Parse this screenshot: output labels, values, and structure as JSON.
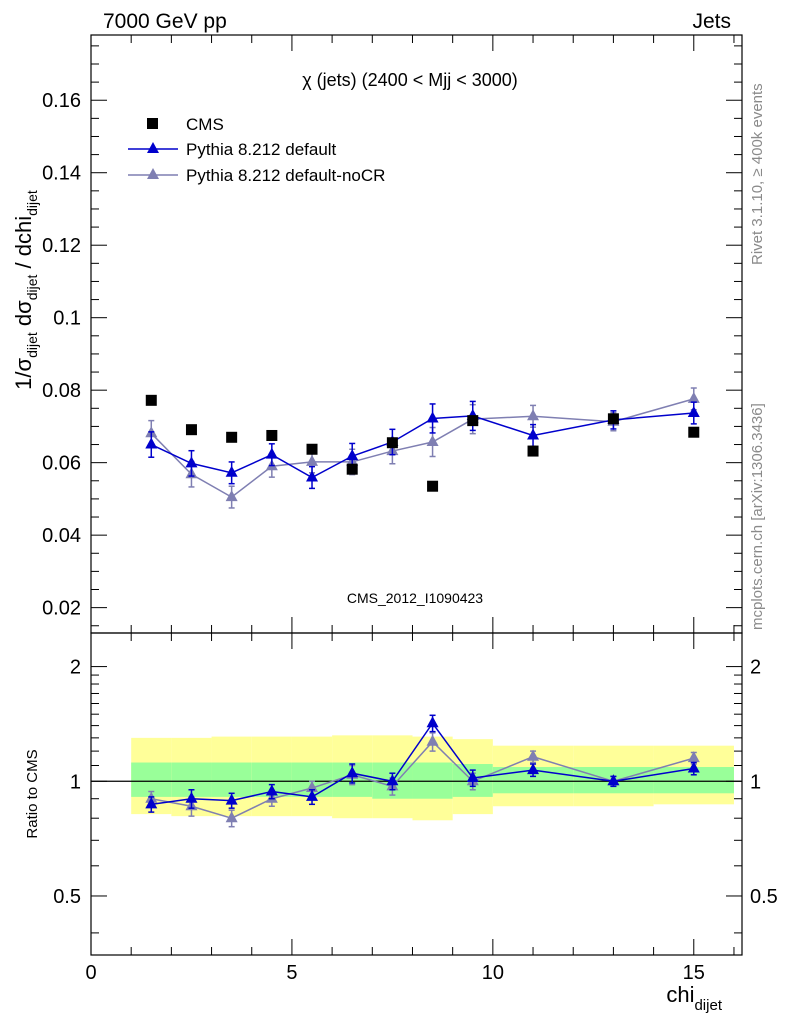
{
  "header": {
    "left": "7000 GeV pp",
    "right": "Jets"
  },
  "side_labels": {
    "rivet": "Rivet 3.1.10, ≥ 400k events",
    "mcplots": "mcplots.cern.ch [arXiv:1306.3436]"
  },
  "colors": {
    "data": "#000000",
    "default": "#0000cc",
    "noCR": "#7f7fb2",
    "band_yellow": "#ffff99",
    "band_green": "#99ff99"
  },
  "chart_data": [
    {
      "type": "scatter",
      "title": "χ (jets) (2400 < Mjj < 3000)",
      "watermark": "CMS_2012_I1090423",
      "xlim": [
        0,
        16.2
      ],
      "ylim": [
        0.013,
        0.178
      ],
      "ylabel_parts": {
        "a": "1/σ",
        "a_sub": "dijet",
        "b": " dσ",
        "b_sub": "dijet",
        "c": " / dchi",
        "c_sub": "dijet"
      },
      "yticks": [
        0.02,
        0.04,
        0.06,
        0.08,
        0.1,
        0.12,
        0.14,
        0.16
      ],
      "ytick_labels": [
        "0.02",
        "0.04",
        "0.06",
        "0.08",
        "0.1",
        "0.12",
        "0.14",
        "0.16"
      ],
      "legend": [
        "CMS",
        "Pythia 8.212 default",
        "Pythia 8.212 default-noCR"
      ],
      "x": [
        1.5,
        2.5,
        3.5,
        4.5,
        5.5,
        6.5,
        7.5,
        8.5,
        9.5,
        11,
        13,
        15
      ],
      "series": [
        {
          "name": "CMS",
          "marker": "square",
          "values": [
            0.0772,
            0.0691,
            0.067,
            0.0675,
            0.0637,
            0.0582,
            0.0655,
            0.0535,
            0.0716,
            0.0632,
            0.0721,
            0.0684
          ]
        },
        {
          "name": "Pythia 8.212 default",
          "marker": "triangle",
          "values": [
            0.065,
            0.0598,
            0.0572,
            0.0622,
            0.0559,
            0.0618,
            0.0657,
            0.0722,
            0.0729,
            0.0675,
            0.0718,
            0.0737
          ],
          "errors": [
            0.0035,
            0.0035,
            0.003,
            0.003,
            0.003,
            0.0035,
            0.0035,
            0.004,
            0.004,
            0.003,
            0.0025,
            0.003
          ]
        },
        {
          "name": "Pythia 8.212 default-noCR",
          "marker": "triangle",
          "values": [
            0.0681,
            0.0568,
            0.0505,
            0.059,
            0.0602,
            0.0602,
            0.0632,
            0.0657,
            0.072,
            0.0728,
            0.0713,
            0.0776
          ],
          "errors": [
            0.0035,
            0.0035,
            0.003,
            0.003,
            0.003,
            0.0035,
            0.0035,
            0.004,
            0.004,
            0.003,
            0.0025,
            0.003
          ]
        }
      ]
    },
    {
      "type": "scatter",
      "ylabel": "Ratio to CMS",
      "xlabel": "chi",
      "xlabel_sub": "dijet",
      "xlim": [
        0,
        16.2
      ],
      "ylim": [
        0.35,
        2.45
      ],
      "log_y": true,
      "yticks": [
        0.5,
        1,
        2
      ],
      "ytick_labels": [
        "0.5",
        "1",
        "2"
      ],
      "xticks": [
        0,
        5,
        10,
        15
      ],
      "xtick_labels": [
        "0",
        "5",
        "10",
        "15"
      ],
      "bands": {
        "edges": [
          1,
          2,
          3,
          4,
          5,
          6,
          7,
          8,
          9,
          10,
          12,
          14,
          16
        ],
        "green_lo": [
          0.91,
          0.91,
          0.91,
          0.91,
          0.91,
          0.91,
          0.9,
          0.9,
          0.91,
          0.93,
          0.93,
          0.93
        ],
        "green_hi": [
          1.12,
          1.12,
          1.12,
          1.12,
          1.12,
          1.12,
          1.12,
          1.12,
          1.11,
          1.09,
          1.09,
          1.09
        ],
        "yellow_lo": [
          0.82,
          0.81,
          0.81,
          0.81,
          0.81,
          0.8,
          0.8,
          0.79,
          0.82,
          0.86,
          0.86,
          0.87
        ],
        "yellow_hi": [
          1.3,
          1.3,
          1.31,
          1.31,
          1.31,
          1.32,
          1.32,
          1.31,
          1.29,
          1.24,
          1.24,
          1.24
        ]
      },
      "x": [
        1.5,
        2.5,
        3.5,
        4.5,
        5.5,
        6.5,
        7.5,
        8.5,
        9.5,
        11,
        13,
        15
      ],
      "series": [
        {
          "name": "Pythia 8.212 default",
          "values": [
            0.87,
            0.9,
            0.89,
            0.94,
            0.91,
            1.05,
            1.0,
            1.42,
            1.02,
            1.07,
            1.0,
            1.08
          ],
          "errors": [
            0.04,
            0.05,
            0.04,
            0.04,
            0.04,
            0.06,
            0.05,
            0.07,
            0.05,
            0.04,
            0.03,
            0.04
          ]
        },
        {
          "name": "Pythia 8.212 default-noCR",
          "values": [
            0.9,
            0.86,
            0.8,
            0.9,
            0.96,
            1.04,
            0.97,
            1.27,
            1.0,
            1.16,
            1.0,
            1.15
          ],
          "errors": [
            0.04,
            0.05,
            0.04,
            0.04,
            0.04,
            0.06,
            0.05,
            0.07,
            0.05,
            0.04,
            0.03,
            0.04
          ]
        }
      ]
    }
  ]
}
